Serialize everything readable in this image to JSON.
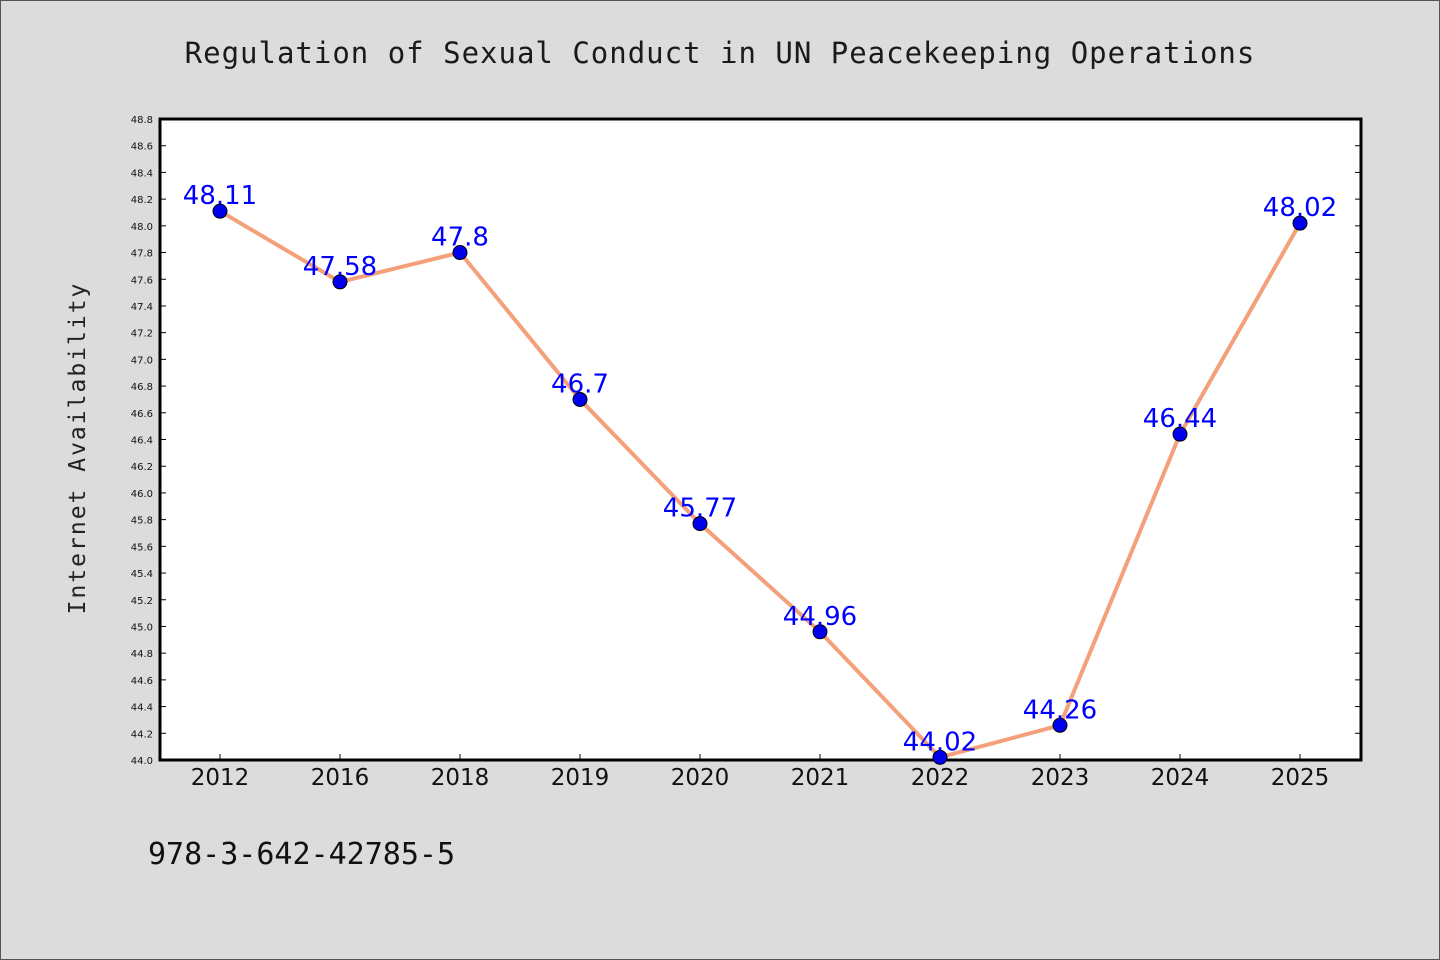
{
  "chart_data": {
    "type": "line",
    "title": "Regulation of Sexual Conduct in UN Peacekeeping Operations",
    "xlabel": "",
    "ylabel": "Internet Availability",
    "categories": [
      "2012",
      "2016",
      "2018",
      "2019",
      "2020",
      "2021",
      "2022",
      "2023",
      "2024",
      "2025"
    ],
    "series": [
      {
        "values": [
          48.11,
          47.58,
          47.8,
          46.7,
          45.77,
          44.96,
          44.02,
          44.26,
          46.44,
          48.02
        ],
        "labels": [
          "48.11",
          "47.58",
          "47.8",
          "46.7",
          "45.77",
          "44.96",
          "44.02",
          "44.26",
          "46.44",
          "48.02"
        ],
        "line_color": "#f4a07a",
        "marker_color": "#0000ee"
      }
    ],
    "ylim": [
      44.0,
      48.8
    ],
    "yticks": [
      "44.0",
      "44.2",
      "44.4",
      "44.6",
      "44.8",
      "45.0",
      "45.2",
      "45.4",
      "45.6",
      "45.8",
      "46.0",
      "46.2",
      "46.4",
      "46.6",
      "46.8",
      "47.0",
      "47.2",
      "47.4",
      "47.6",
      "47.8",
      "48.0",
      "48.2",
      "48.4",
      "48.6",
      "48.8"
    ],
    "grid": false,
    "label_color": "#0000ff"
  },
  "footer_text": "978-3-642-42785-5"
}
